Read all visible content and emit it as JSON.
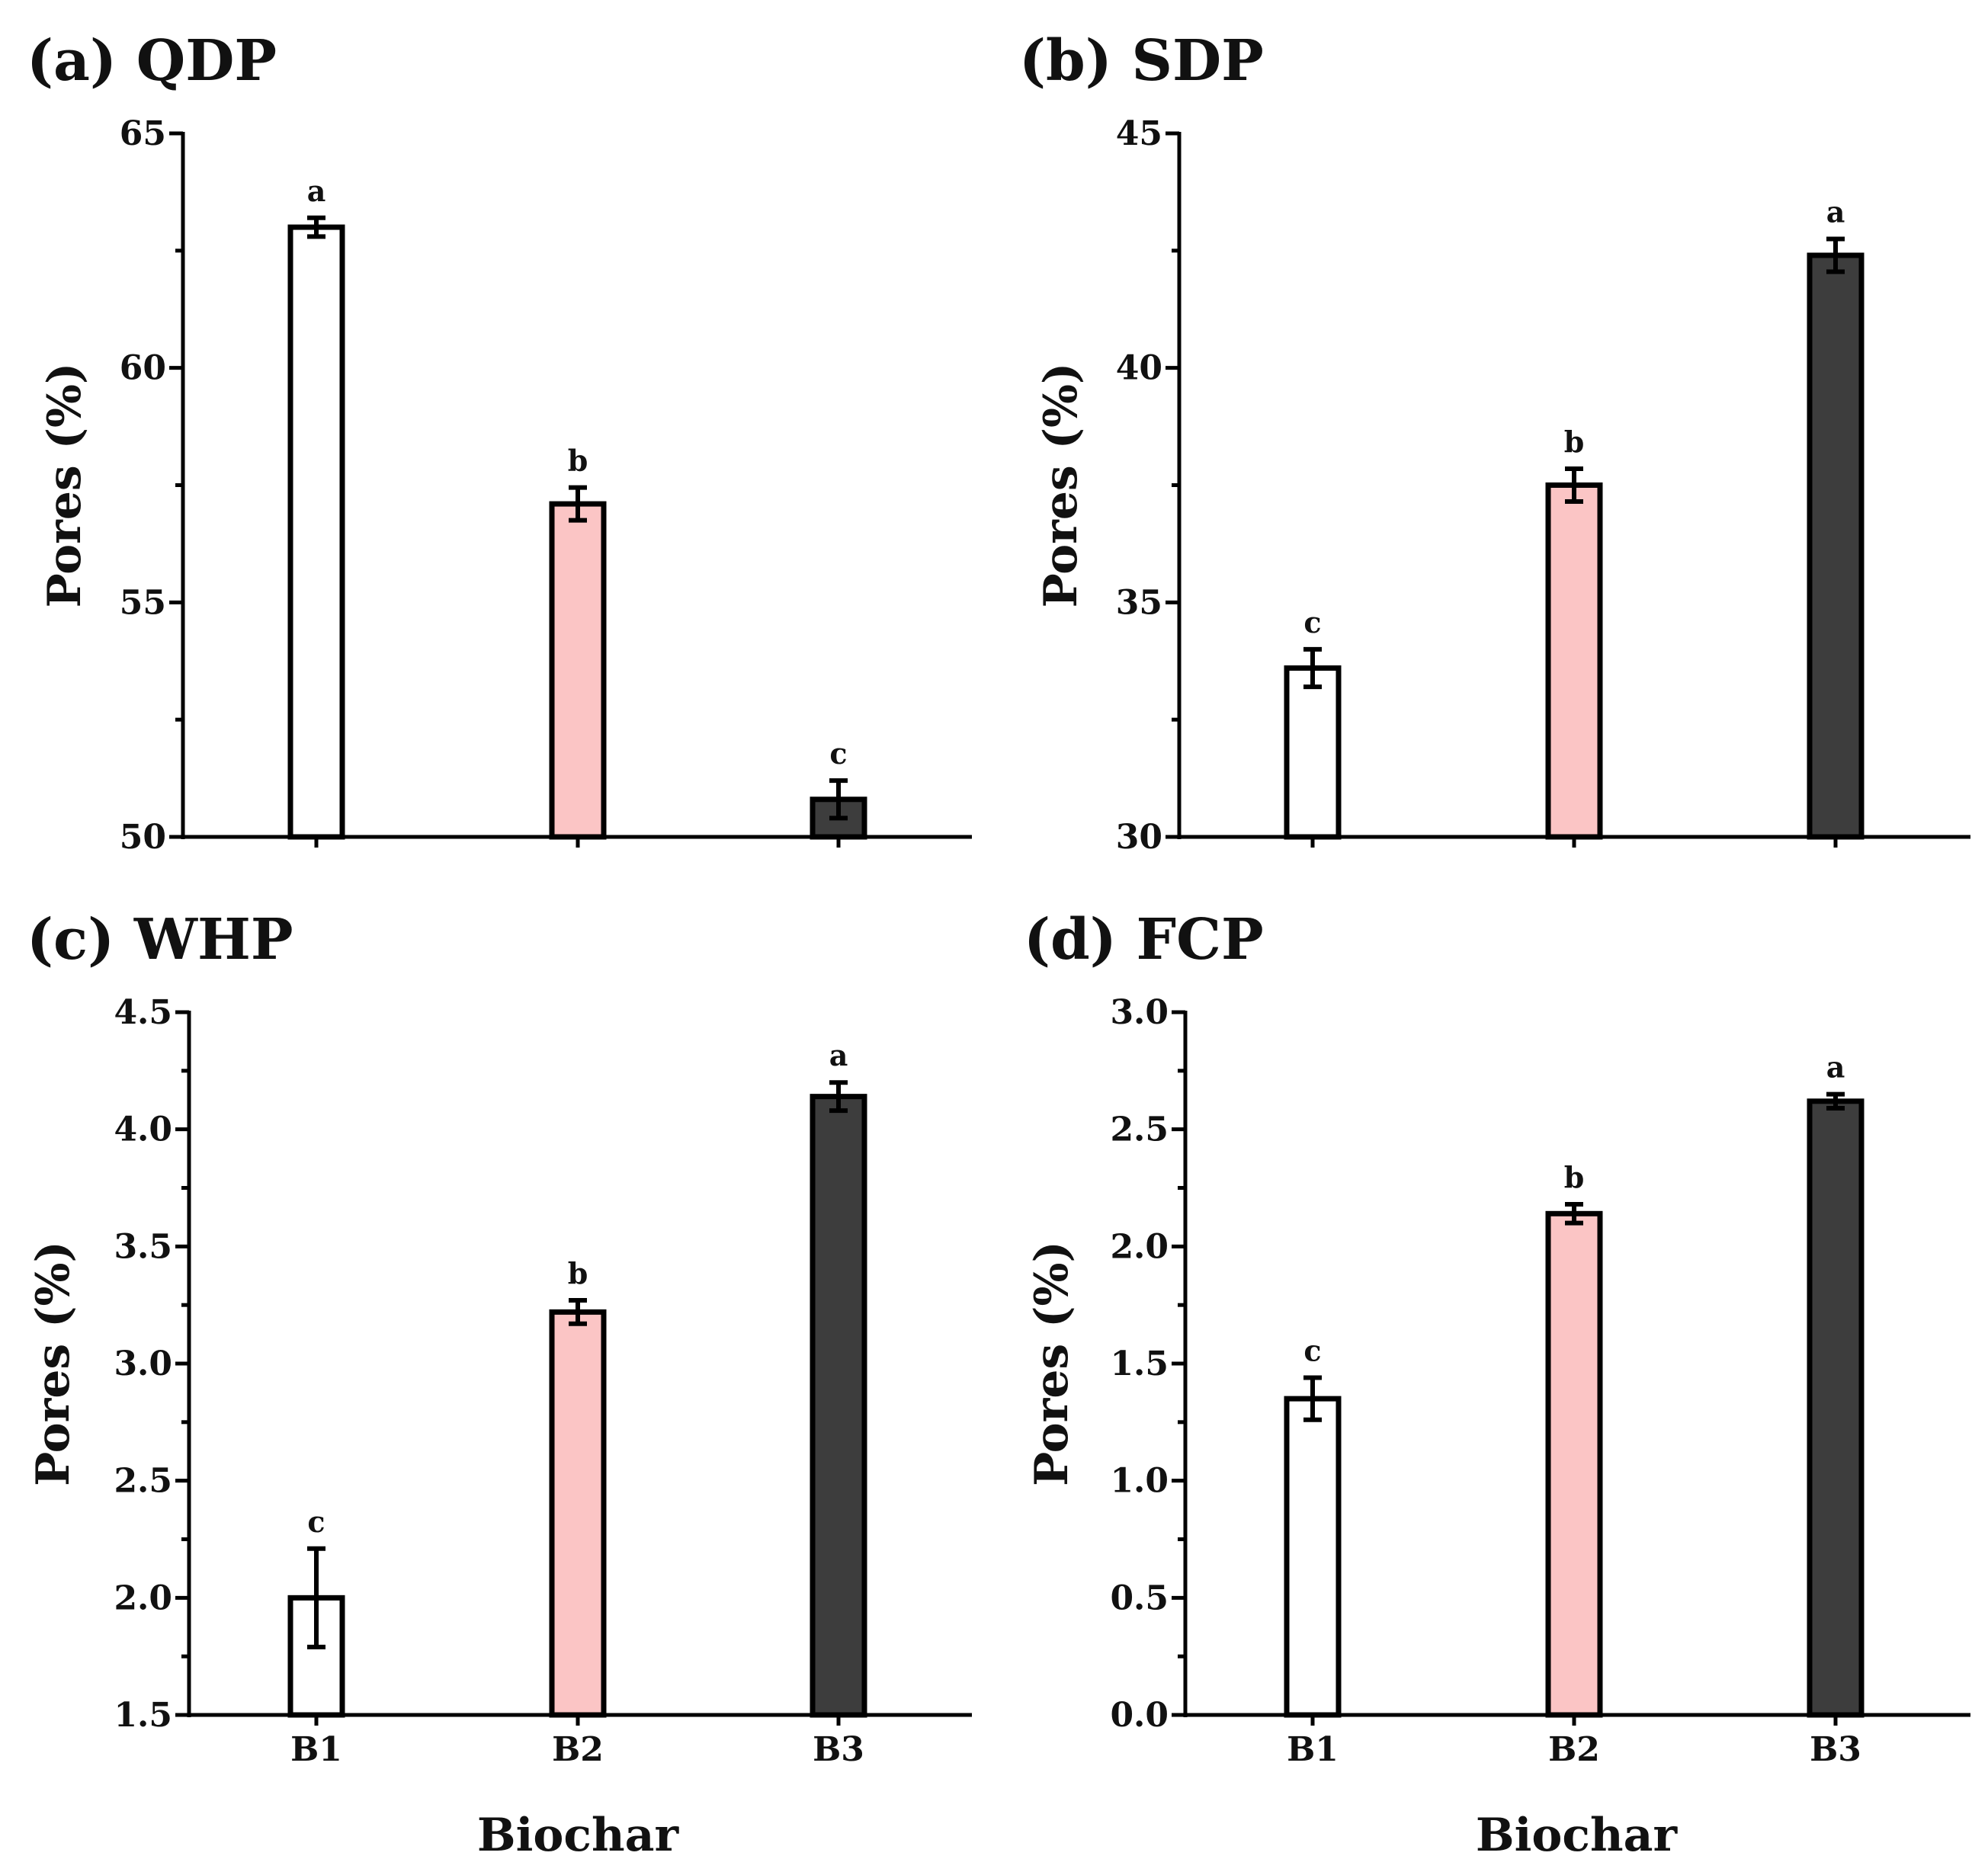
{
  "figure_xlabel": "Biochar",
  "colors": {
    "B1": "#ffffff",
    "B2": "#fbc5c5",
    "B3": "#3d3d3d",
    "axis": "#000000"
  },
  "chart_data": [
    {
      "id": "a",
      "type": "bar",
      "title": "(a) QDP",
      "ylabel": "Pores (%)",
      "xlabel": "",
      "categories": [
        "B1",
        "B2",
        "B3"
      ],
      "values": [
        63.0,
        57.1,
        50.8
      ],
      "errors": [
        0.2,
        0.35,
        0.4
      ],
      "letters": [
        "a",
        "b",
        "c"
      ],
      "ylim": [
        50,
        65
      ],
      "yticks": [
        50,
        55,
        60,
        65
      ],
      "ytick_labels": [
        "50",
        "55",
        "60",
        "65"
      ],
      "show_xtick_labels": false
    },
    {
      "id": "b",
      "type": "bar",
      "title": "(b) SDP",
      "ylabel": "Pores (%)",
      "xlabel": "",
      "categories": [
        "B1",
        "B2",
        "B3"
      ],
      "values": [
        33.6,
        37.5,
        42.4
      ],
      "errors": [
        0.4,
        0.35,
        0.35
      ],
      "letters": [
        "c",
        "b",
        "a"
      ],
      "ylim": [
        30,
        45
      ],
      "yticks": [
        30,
        35,
        40,
        45
      ],
      "ytick_labels": [
        "30",
        "35",
        "40",
        "45"
      ],
      "show_xtick_labels": false
    },
    {
      "id": "c",
      "type": "bar",
      "title": "(c) WHP",
      "ylabel": "Pores (%)",
      "xlabel": "Biochar",
      "categories": [
        "B1",
        "B2",
        "B3"
      ],
      "values": [
        2.0,
        3.22,
        4.14
      ],
      "errors": [
        0.21,
        0.05,
        0.06
      ],
      "letters": [
        "c",
        "b",
        "a"
      ],
      "ylim": [
        1.5,
        4.5
      ],
      "yticks": [
        1.5,
        2.0,
        2.5,
        3.0,
        3.5,
        4.0,
        4.5
      ],
      "ytick_labels": [
        "1.5",
        "2.0",
        "2.5",
        "3.0",
        "3.5",
        "4.0",
        "4.5"
      ],
      "show_xtick_labels": true
    },
    {
      "id": "d",
      "type": "bar",
      "title": "(d) FCP",
      "ylabel": "Pores (%)",
      "xlabel": "Biochar",
      "categories": [
        "B1",
        "B2",
        "B3"
      ],
      "values": [
        1.35,
        2.14,
        2.62
      ],
      "errors": [
        0.09,
        0.04,
        0.03
      ],
      "letters": [
        "c",
        "b",
        "a"
      ],
      "ylim": [
        0.0,
        3.0
      ],
      "yticks": [
        0.0,
        0.5,
        1.0,
        1.5,
        2.0,
        2.5,
        3.0
      ],
      "ytick_labels": [
        "0.0",
        "0.5",
        "1.0",
        "1.5",
        "2.0",
        "2.5",
        "3.0"
      ],
      "show_xtick_labels": true
    }
  ]
}
